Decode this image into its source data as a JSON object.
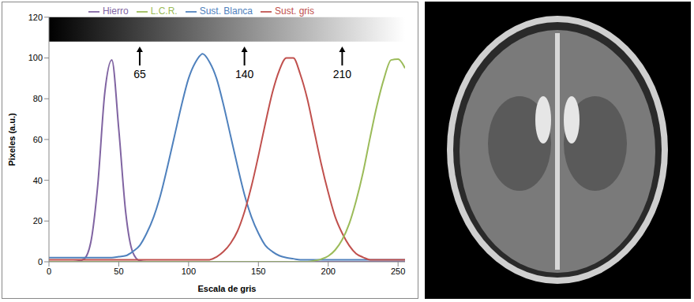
{
  "chart_data": {
    "type": "line",
    "x_label": "Escala de gris",
    "y_label": "Pixeles (a.u.)",
    "x": [
      0,
      5,
      10,
      15,
      20,
      25,
      30,
      35,
      40,
      45,
      50,
      55,
      60,
      65,
      70,
      75,
      80,
      85,
      90,
      95,
      100,
      105,
      110,
      115,
      120,
      125,
      130,
      135,
      140,
      145,
      150,
      155,
      160,
      165,
      170,
      175,
      180,
      185,
      190,
      195,
      200,
      205,
      210,
      215,
      220,
      225,
      230,
      235,
      240,
      245,
      250,
      255
    ],
    "series": [
      {
        "name": "Hierro",
        "color": "#8064A2",
        "values": [
          0,
          0,
          0,
          0,
          0.2,
          1.3,
          9.7,
          38,
          83,
          99,
          65,
          24,
          4.7,
          0.5,
          0,
          0,
          0,
          0,
          0,
          0,
          0,
          0,
          0,
          0,
          0,
          0,
          0,
          0,
          0,
          0,
          0,
          0,
          0,
          0,
          0,
          0,
          0,
          0,
          0,
          0,
          0,
          0,
          0,
          0,
          0,
          0,
          0,
          0,
          0,
          0,
          0,
          0
        ]
      },
      {
        "name": "Sust. Blanca",
        "color": "#4F81BD",
        "values": [
          2,
          2,
          2,
          2,
          2,
          2,
          2,
          2,
          2,
          2,
          2.5,
          3,
          5,
          8,
          14,
          22,
          33,
          47,
          62,
          77,
          90,
          98,
          102,
          98,
          90,
          77,
          62,
          47,
          33,
          22,
          14,
          8,
          5,
          3,
          2,
          1.5,
          1,
          1,
          1,
          1,
          1,
          1,
          1,
          1,
          1,
          1,
          1,
          1,
          1,
          1,
          1,
          1
        ]
      },
      {
        "name": "Sust. gris",
        "color": "#C0504D",
        "values": [
          1,
          1,
          1,
          1,
          1,
          1,
          1,
          1,
          1,
          1,
          1,
          1,
          1,
          1,
          1,
          1,
          1,
          1,
          1,
          1,
          1,
          1,
          1,
          1,
          2.4,
          5,
          9,
          15,
          24.5,
          37,
          52,
          68,
          83,
          94,
          100,
          100,
          92,
          80,
          64,
          48,
          34,
          22,
          14,
          8,
          4,
          2.2,
          1,
          1,
          1,
          1,
          1,
          1
        ]
      },
      {
        "name": "L.C.R.",
        "color": "#9BBB59",
        "values": [
          0,
          0,
          0,
          0,
          0,
          0,
          0,
          0,
          0,
          0,
          0,
          0,
          0,
          0,
          0,
          0,
          0,
          0,
          0,
          0,
          0,
          0,
          0,
          0,
          0,
          0,
          0,
          0,
          0,
          0,
          0,
          0,
          0,
          0,
          0,
          0,
          0,
          0,
          0.5,
          1.3,
          2.8,
          5.8,
          10.8,
          18.6,
          30,
          44,
          61,
          77,
          90,
          99,
          99.4,
          95
        ]
      }
    ],
    "xlim": [
      0,
      255
    ],
    "xticks": [
      0,
      50,
      100,
      150,
      200,
      250
    ],
    "ylim": [
      0,
      120
    ],
    "yticks": [
      0,
      20,
      40,
      60,
      80,
      100,
      120
    ],
    "annotations": [
      65,
      140,
      210
    ],
    "legend": "top",
    "grid": false
  }
}
